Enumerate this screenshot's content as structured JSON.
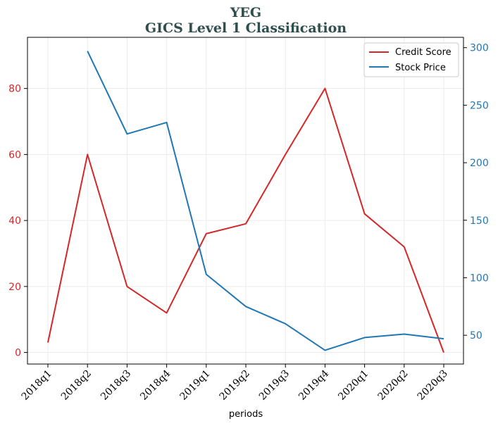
{
  "chart_data": {
    "type": "line",
    "title_lines": [
      "YEG",
      "GICS Level 1 Classification"
    ],
    "xlabel": "periods",
    "categories": [
      "2018q1",
      "2018q2",
      "2018q3",
      "2018q4",
      "2019q1",
      "2019q2",
      "2019q3",
      "2019q4",
      "2020q1",
      "2020q2",
      "2020q3"
    ],
    "left_axis": {
      "ylim": [
        -3.5,
        95.5
      ],
      "ticks": [
        0,
        20,
        40,
        60,
        80
      ],
      "color": "#d62728"
    },
    "right_axis": {
      "ylim": [
        25,
        309
      ],
      "ticks": [
        50,
        100,
        150,
        200,
        250,
        300
      ],
      "color": "#1f77b4"
    },
    "series": [
      {
        "name": "Credit Score",
        "axis": "left",
        "color": "#d62728",
        "values": [
          3,
          60,
          20,
          12,
          36,
          39,
          60,
          80,
          42,
          32,
          0
        ]
      },
      {
        "name": "Stock Price",
        "axis": "right",
        "color": "#1f77b4",
        "values": [
          null,
          297,
          225,
          235,
          103,
          75,
          60,
          37,
          48,
          51,
          47
        ]
      }
    ],
    "grid": true,
    "legend_position": "top-right"
  }
}
